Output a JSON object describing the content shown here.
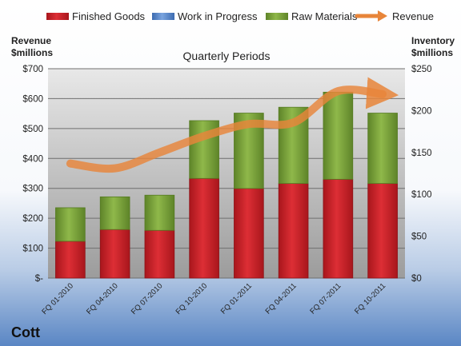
{
  "company": "Cott",
  "chart_data": {
    "type": "bar",
    "subtitle": "Quarterly Periods",
    "y_left_label_line1": "Revenue",
    "y_left_label_line2": "$millions",
    "y_right_label_line1": "Inventory",
    "y_right_label_line2": "$millions",
    "y_left_ticks": [
      "$-",
      "$100",
      "$200",
      "$300",
      "$400",
      "$500",
      "$600",
      "$700"
    ],
    "y_right_ticks": [
      "$0",
      "$50",
      "$100",
      "$150",
      "$200",
      "$250"
    ],
    "y_left_lim": [
      0,
      700
    ],
    "y_right_lim": [
      0,
      250
    ],
    "categories": [
      "FQ 01-2010",
      "FQ 04-2010",
      "FQ 07-2010",
      "FQ 10-2010",
      "FQ 01-2011",
      "FQ 04-2011",
      "FQ 07-2011",
      "FQ 10-2011"
    ],
    "legend_position": "top",
    "series": [
      {
        "name": "Finished Goods",
        "type": "stacked-bar",
        "axis": "right",
        "color": "#cc2229",
        "values": [
          44,
          58,
          57,
          119,
          107,
          113,
          118,
          113
        ]
      },
      {
        "name": "Work in Progress",
        "type": "stacked-bar",
        "axis": "right",
        "color": "#5b8bd0",
        "values": [
          0,
          0,
          0,
          0,
          0,
          0,
          0,
          0
        ]
      },
      {
        "name": "Raw Materials",
        "type": "stacked-bar",
        "axis": "right",
        "color": "#7ea83a",
        "values": [
          40,
          39,
          42,
          69,
          90,
          91,
          104,
          84
        ]
      },
      {
        "name": "Revenue",
        "type": "line",
        "axis": "left",
        "color": "#e8853a",
        "values": [
          383,
          367,
          420,
          475,
          515,
          520,
          625,
          615
        ]
      }
    ]
  }
}
